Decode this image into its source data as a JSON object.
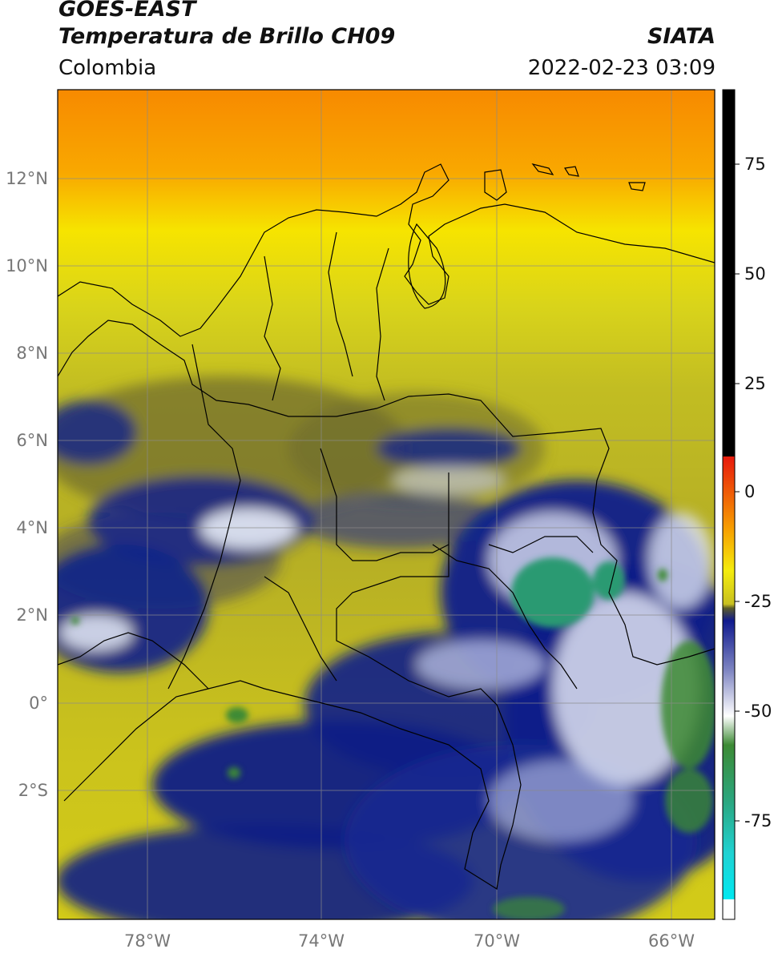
{
  "header": {
    "satellite": "GOES-EAST",
    "product": "Temperatura de Brillo CH09",
    "organization": "SIATA",
    "region": "Colombia",
    "datetime": "2022-02-23 03:09"
  },
  "map": {
    "lon_labels": [
      "78°W",
      "74°W",
      "70°W",
      "66°W"
    ],
    "lat_labels": [
      "12°N",
      "10°N",
      "8°N",
      "6°N",
      "4°N",
      "2°N",
      "0°",
      "2°S"
    ]
  },
  "colorbar": {
    "tick_labels": [
      "75",
      "50",
      "25",
      "0",
      "-25",
      "-50",
      "-75"
    ],
    "colors": {
      "very_warm": "#000000",
      "red": "#e81d0c",
      "orange": "#f78a00",
      "yellow": "#f2ea10",
      "olive": "#4a4a28",
      "navy": "#0c1a8c",
      "white": "#ffffff",
      "green": "#2e8a3a",
      "teal": "#2cc0b0",
      "cyan": "#10e0e0"
    }
  }
}
